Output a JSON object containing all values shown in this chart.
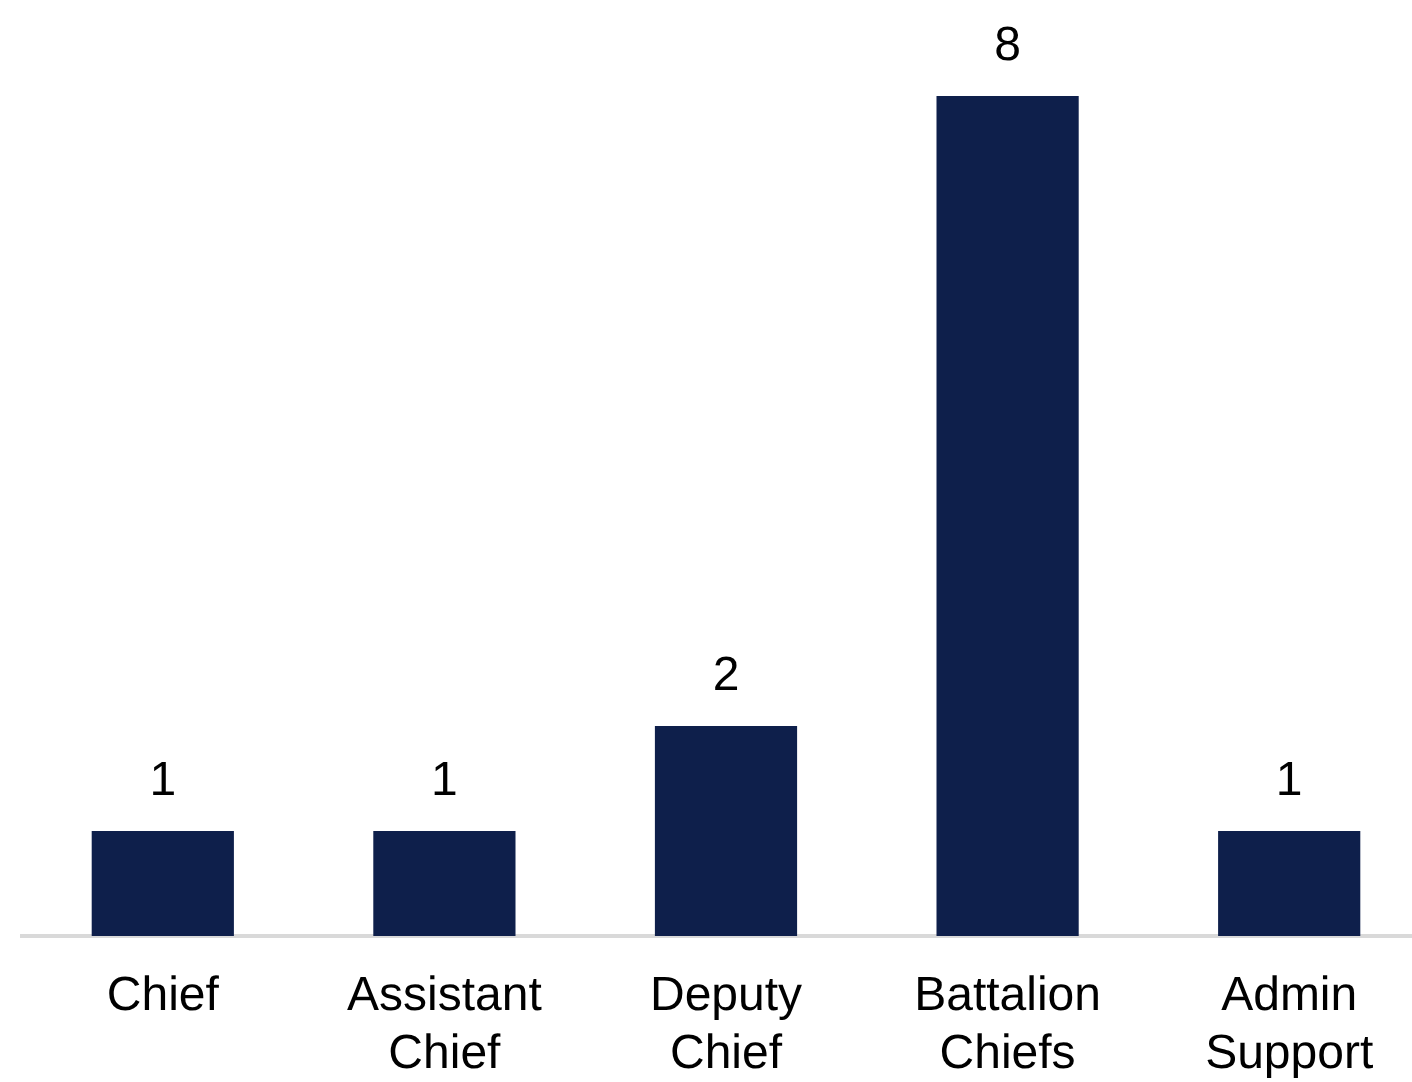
{
  "chart_data": {
    "type": "bar",
    "categories": [
      "Chief",
      "Assistant Chief",
      "Deputy Chief",
      "Battalion Chiefs",
      "Admin Support"
    ],
    "values": [
      1,
      1,
      2,
      8,
      1
    ],
    "color": "#0e1f4b",
    "data_labels": true
  }
}
